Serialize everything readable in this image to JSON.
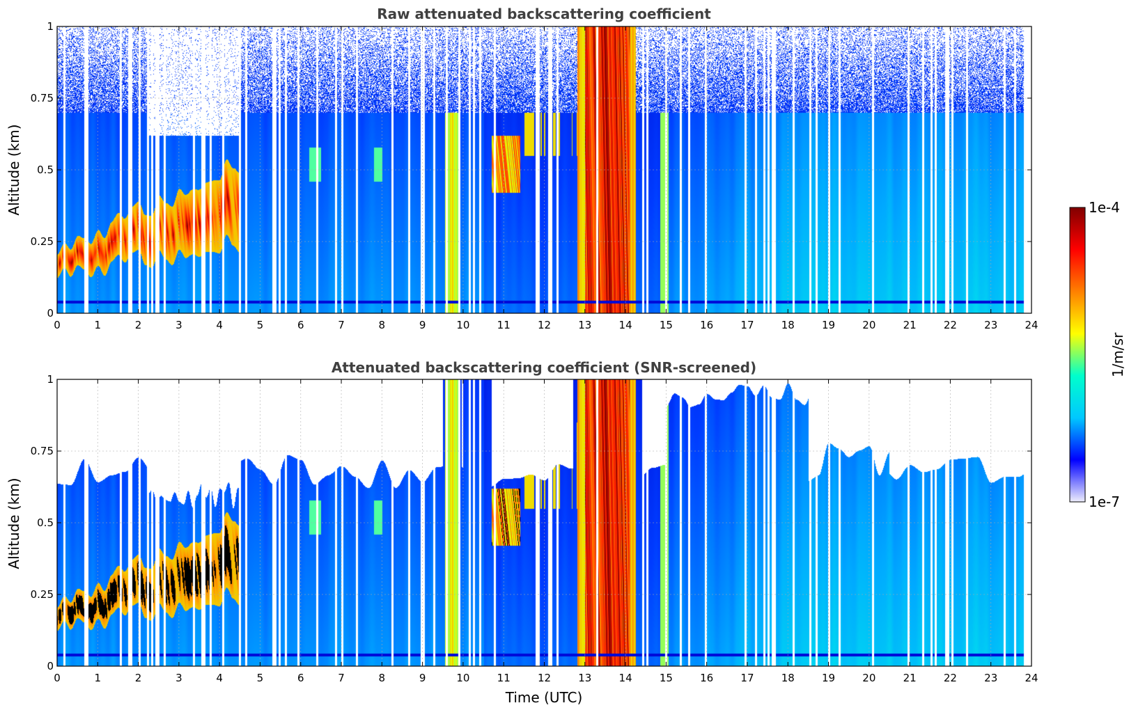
{
  "chart_data": [
    {
      "type": "heatmap",
      "title": "Raw attenuated backscattering coefficient",
      "xlabel": "",
      "ylabel": "Altitude (km)",
      "xlim": [
        0,
        24
      ],
      "ylim": [
        0,
        1
      ],
      "xticks": [
        "0",
        "1",
        "2",
        "3",
        "4",
        "5",
        "6",
        "7",
        "8",
        "9",
        "10",
        "11",
        "12",
        "13",
        "14",
        "15",
        "16",
        "17",
        "18",
        "19",
        "20",
        "21",
        "22",
        "23",
        "24"
      ],
      "yticks": [
        "0",
        "0.25",
        "0.5",
        "0.75",
        "1"
      ],
      "grid": true,
      "screened": false,
      "features": [
        {
          "label": "low cloud layer",
          "t_start": 0,
          "t_end": 4.5,
          "alt_bottom": 0.15,
          "alt_top": 0.45,
          "level": "high"
        },
        {
          "label": "dense cloud column",
          "t_start": 12.9,
          "t_end": 14.2,
          "alt_bottom": 0,
          "alt_top": 1,
          "level": "very high"
        }
      ]
    },
    {
      "type": "heatmap",
      "title": "Attenuated backscattering coefficient (SNR-screened)",
      "xlabel": "Time (UTC)",
      "ylabel": "Altitude (km)",
      "xlim": [
        0,
        24
      ],
      "ylim": [
        0,
        1
      ],
      "xticks": [
        "0",
        "1",
        "2",
        "3",
        "4",
        "5",
        "6",
        "7",
        "8",
        "9",
        "10",
        "11",
        "12",
        "13",
        "14",
        "15",
        "16",
        "17",
        "18",
        "19",
        "20",
        "21",
        "22",
        "23",
        "24"
      ],
      "yticks": [
        "0",
        "0.25",
        "0.5",
        "0.75",
        "1"
      ],
      "grid": true,
      "screened": true,
      "features": [
        {
          "label": "low cloud layer",
          "t_start": 0,
          "t_end": 4.5,
          "alt_bottom": 0.15,
          "alt_top": 0.45,
          "level": "saturated"
        },
        {
          "label": "dense cloud column",
          "t_start": 12.9,
          "t_end": 14.2,
          "alt_bottom": 0,
          "alt_top": 1,
          "level": "very high"
        }
      ]
    }
  ],
  "colorbar": {
    "label": "1/m/sr",
    "max_label": "1e-4",
    "min_label": "1e-7",
    "scale": "log",
    "colormap": "jet",
    "colors": [
      "#eeeefc",
      "#0000ff",
      "#00c8ff",
      "#00ffcc",
      "#ffff00",
      "#ff8000",
      "#ff0000",
      "#800000"
    ]
  }
}
